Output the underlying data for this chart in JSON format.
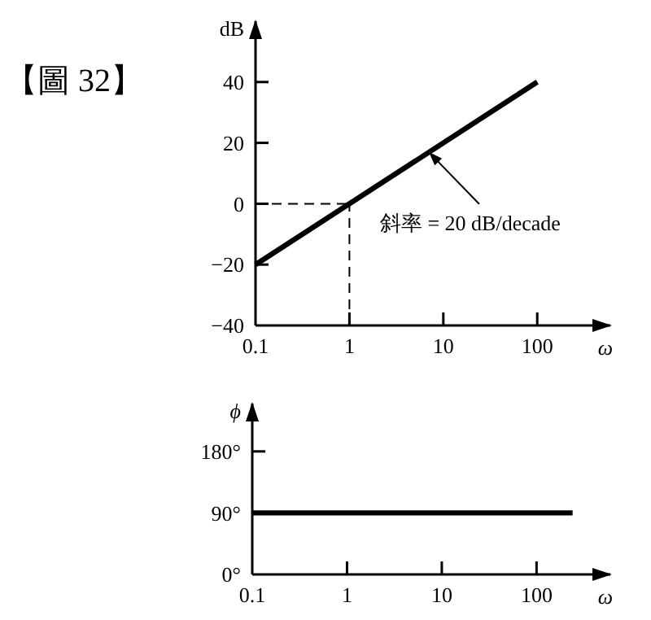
{
  "chart_data": [
    {
      "type": "line",
      "title": "【圖 32】",
      "xlabel": "ω",
      "ylabel": "dB",
      "log": "x",
      "grid": false,
      "xlim": [
        0.1,
        600
      ],
      "xticks": [
        0.1,
        1,
        10,
        100
      ],
      "ylim": [
        -40,
        60
      ],
      "yticks": [
        {
          "value": -40,
          "label": "−40"
        },
        {
          "value": -20,
          "label": "−20"
        },
        0,
        20,
        40
      ],
      "series": [
        {
          "color": "#000000",
          "x": [
            0.1,
            100
          ],
          "values": [
            -20,
            40
          ]
        }
      ],
      "ref_lines": [
        {
          "axis": "y",
          "value": 0,
          "line_style": "dashed"
        },
        {
          "axis": "x",
          "value": 1,
          "line_style": "dashed"
        }
      ],
      "annotations": [
        {
          "text": "斜率 = 20 dB/decade",
          "x": 7,
          "y": 17
        }
      ]
    },
    {
      "type": "line",
      "xlabel": "ω",
      "ylabel": "ϕ",
      "log": "x",
      "grid": false,
      "xlim": [
        0.1,
        600
      ],
      "xticks": [
        0.1,
        1,
        10,
        100
      ],
      "ylim": [
        0,
        250
      ],
      "yticks": [
        {
          "value": 0,
          "label": "0°"
        },
        {
          "value": 90,
          "label": "90°"
        },
        {
          "value": 180,
          "label": "180°"
        }
      ],
      "series": [
        {
          "color": "#000000",
          "x": [
            0.1,
            240
          ],
          "values": [
            90,
            90
          ]
        }
      ]
    }
  ]
}
